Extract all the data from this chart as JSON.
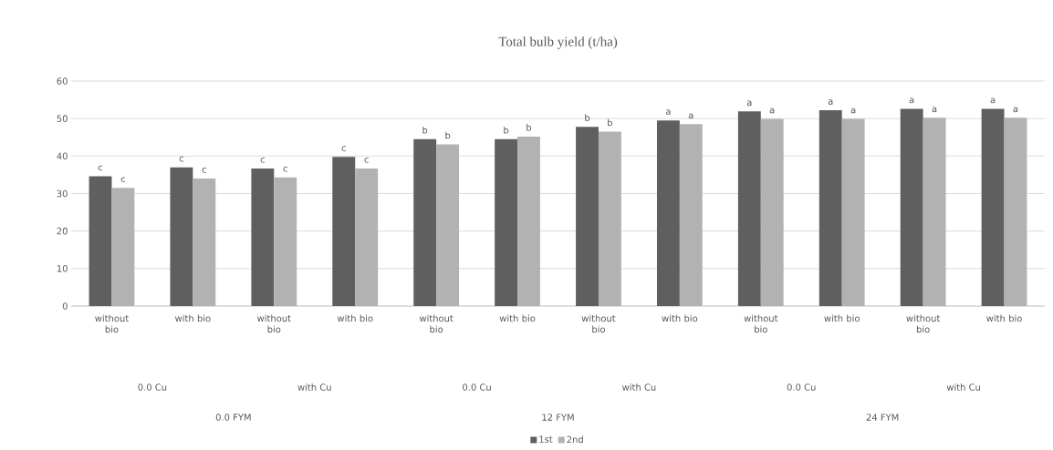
{
  "chart_data": {
    "type": "bar",
    "title": "Total bulb yield (t/ha)",
    "categories": [
      "without bio",
      "with bio",
      "without bio",
      "with bio",
      "without bio",
      "with bio",
      "without bio",
      "with bio",
      "without bio",
      "with bio",
      "without bio",
      "with bio"
    ],
    "series": [
      {
        "name": "1st",
        "color": "#5f5f5f",
        "values": [
          34.6,
          37.0,
          36.7,
          39.8,
          44.5,
          44.5,
          47.8,
          49.5,
          51.9,
          52.2,
          52.6,
          52.6
        ],
        "value_labels": [
          "c",
          "c",
          "c",
          "c",
          "b",
          "b",
          "b",
          "a",
          "a",
          "a",
          "a",
          "a"
        ]
      },
      {
        "name": "2nd",
        "color": "#b2b2b2",
        "values": [
          31.5,
          34.0,
          34.3,
          36.7,
          43.1,
          45.2,
          46.5,
          48.5,
          49.9,
          49.9,
          50.2,
          50.2
        ],
        "value_labels": [
          "c",
          "c",
          "c",
          "c",
          "b",
          "b",
          "b",
          "a",
          "a",
          "a",
          "a",
          "a"
        ]
      }
    ],
    "annotations": [
      "0.0 Cu",
      "with Cu",
      "0.0 Cu",
      "with Cu",
      "0.0 Cu",
      "with Cu",
      "0.0 FYM",
      "12 FYM",
      "24 FYM"
    ],
    "ylim": [
      0,
      60
    ],
    "yticks": [
      0,
      10,
      20,
      30,
      40,
      50,
      60
    ],
    "grid": "y",
    "legend": "bottom"
  }
}
